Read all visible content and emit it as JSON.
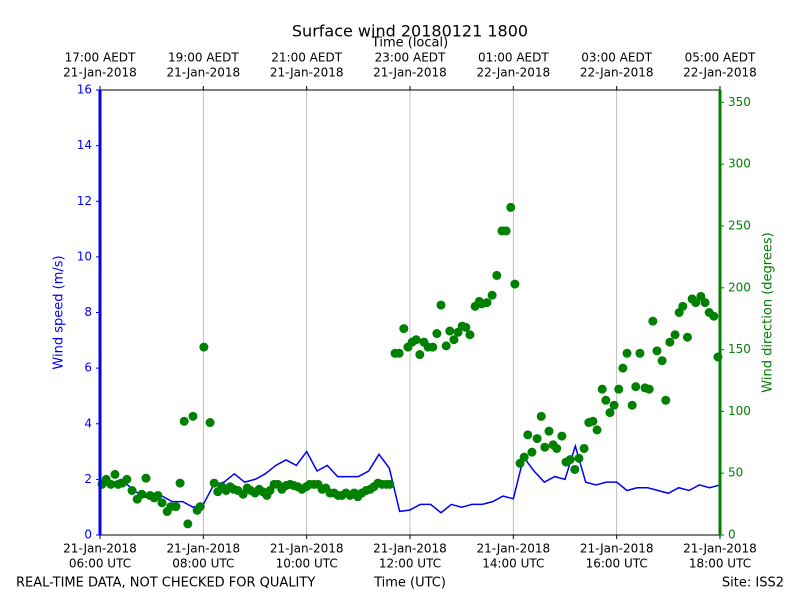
{
  "chart_data": {
    "type": "line",
    "title": "Surface wind 20180121 1800",
    "xlabel": "Time (UTC)",
    "top_xlabel": "Time (local)",
    "ylabel": "Wind speed (m/s)",
    "y2label": "Wind direction (degrees)",
    "footer_left": "REAL-TIME DATA, NOT CHECKED FOR QUALITY",
    "footer_right": "Site: ISS2",
    "xlim": [
      6,
      18
    ],
    "xticks": [
      {
        "value": 6,
        "label": [
          "21-Jan-2018",
          "06:00 UTC"
        ]
      },
      {
        "value": 8,
        "label": [
          "21-Jan-2018",
          "08:00 UTC"
        ]
      },
      {
        "value": 10,
        "label": [
          "21-Jan-2018",
          "10:00 UTC"
        ]
      },
      {
        "value": 12,
        "label": [
          "21-Jan-2018",
          "12:00 UTC"
        ]
      },
      {
        "value": 14,
        "label": [
          "21-Jan-2018",
          "14:00 UTC"
        ]
      },
      {
        "value": 16,
        "label": [
          "21-Jan-2018",
          "16:00 UTC"
        ]
      },
      {
        "value": 18,
        "label": [
          "21-Jan-2018",
          "18:00 UTC"
        ]
      }
    ],
    "top_xticks": [
      {
        "value": 6,
        "label": [
          "17:00 AEDT",
          "21-Jan-2018"
        ]
      },
      {
        "value": 8,
        "label": [
          "19:00 AEDT",
          "21-Jan-2018"
        ]
      },
      {
        "value": 10,
        "label": [
          "21:00 AEDT",
          "21-Jan-2018"
        ]
      },
      {
        "value": 12,
        "label": [
          "23:00 AEDT",
          "21-Jan-2018"
        ]
      },
      {
        "value": 14,
        "label": [
          "01:00 AEDT",
          "22-Jan-2018"
        ]
      },
      {
        "value": 16,
        "label": [
          "03:00 AEDT",
          "22-Jan-2018"
        ]
      },
      {
        "value": 18,
        "label": [
          "05:00 AEDT",
          "22-Jan-2018"
        ]
      }
    ],
    "ylim": [
      0,
      16
    ],
    "yticks": [
      0,
      2,
      4,
      6,
      8,
      10,
      12,
      14,
      16
    ],
    "y2lim": [
      0,
      360
    ],
    "y2ticks": [
      0,
      50,
      100,
      150,
      200,
      250,
      300,
      350
    ],
    "ycolor": "#0000ff",
    "y2color": "#008000",
    "grid": "x",
    "series": [
      {
        "style": "line",
        "color": "#0000ff",
        "x": [
          6.0,
          6.2,
          6.4,
          6.6,
          6.8,
          7.0,
          7.2,
          7.4,
          7.6,
          7.8,
          8.0,
          8.2,
          8.4,
          8.6,
          8.8,
          9.0,
          9.2,
          9.4,
          9.6,
          9.8,
          10.0,
          10.2,
          10.4,
          10.6,
          10.8,
          11.0,
          11.2,
          11.4,
          11.6,
          11.8,
          12.0,
          12.2,
          12.4,
          12.6,
          12.8,
          13.0,
          13.2,
          13.4,
          13.6,
          13.8,
          14.0,
          14.2,
          14.4,
          14.6,
          14.8,
          15.0,
          15.2,
          15.4,
          15.6,
          15.8,
          16.0,
          16.2,
          16.4,
          16.6,
          16.8,
          17.0,
          17.2,
          17.4,
          17.6,
          17.8,
          18.0
        ],
        "values": [
          1.8,
          1.8,
          2.0,
          1.7,
          1.4,
          1.3,
          1.4,
          1.2,
          1.2,
          1.0,
          1.1,
          1.8,
          1.9,
          2.2,
          1.9,
          2.0,
          2.2,
          2.5,
          2.7,
          2.5,
          3.0,
          2.3,
          2.5,
          2.1,
          2.1,
          2.1,
          2.3,
          2.9,
          2.4,
          0.85,
          0.9,
          1.1,
          1.1,
          0.8,
          1.1,
          1.0,
          1.1,
          1.1,
          1.2,
          1.4,
          1.3,
          2.8,
          2.3,
          1.9,
          2.1,
          2.0,
          3.2,
          1.9,
          1.8,
          1.9,
          1.9,
          1.6,
          1.7,
          1.7,
          1.6,
          1.5,
          1.7,
          1.6,
          1.8,
          1.7,
          1.8
        ]
      },
      {
        "style": "marker",
        "color": "#008000",
        "axis": "y2",
        "x": [
          6.04,
          6.12,
          6.21,
          6.29,
          6.35,
          6.43,
          6.52,
          6.62,
          6.72,
          6.81,
          6.89,
          6.97,
          7.05,
          7.12,
          7.2,
          7.3,
          7.37,
          7.47,
          7.55,
          7.63,
          7.7,
          7.8,
          7.88,
          7.94,
          8.01,
          8.13,
          8.21,
          8.28,
          8.36,
          8.44,
          8.52,
          8.59,
          8.67,
          8.77,
          8.85,
          8.92,
          9.0,
          9.08,
          9.15,
          9.23,
          9.29,
          9.37,
          9.44,
          9.52,
          9.6,
          9.68,
          9.75,
          9.83,
          9.91,
          9.99,
          10.06,
          10.14,
          10.22,
          10.3,
          10.37,
          10.45,
          10.53,
          10.61,
          10.68,
          10.76,
          10.84,
          10.92,
          10.99,
          11.07,
          11.15,
          11.23,
          11.3,
          11.38,
          11.46,
          11.54,
          11.61,
          11.71,
          11.79,
          11.88,
          11.96,
          12.04,
          12.12,
          12.19,
          12.27,
          12.35,
          12.44,
          12.52,
          12.6,
          12.7,
          12.77,
          12.85,
          12.93,
          13.01,
          13.08,
          13.16,
          13.26,
          13.34,
          13.39,
          13.49,
          13.59,
          13.68,
          13.78,
          13.86,
          13.95,
          14.03,
          14.13,
          14.21,
          14.28,
          14.36,
          14.46,
          14.54,
          14.61,
          14.69,
          14.77,
          14.84,
          14.94,
          15.02,
          15.1,
          15.19,
          15.27,
          15.37,
          15.46,
          15.54,
          15.62,
          15.72,
          15.79,
          15.87,
          15.95,
          16.04,
          16.12,
          16.2,
          16.3,
          16.37,
          16.45,
          16.55,
          16.63,
          16.7,
          16.78,
          16.88,
          16.95,
          17.03,
          17.13,
          17.21,
          17.28,
          17.37,
          17.46,
          17.53,
          17.63,
          17.71,
          17.79,
          17.88,
          17.96
        ],
        "values": [
          41,
          45,
          41,
          49,
          41,
          42,
          45,
          36,
          29,
          33,
          46,
          32,
          30,
          32,
          26,
          19,
          23,
          23,
          42,
          92,
          9,
          96,
          20,
          23,
          152,
          91,
          42,
          35,
          39,
          36,
          39,
          37,
          36,
          33,
          38,
          36,
          34,
          37,
          35,
          32,
          36,
          41,
          41,
          37,
          40,
          41,
          40,
          39,
          37,
          39,
          41,
          41,
          41,
          37,
          38,
          34,
          34,
          32,
          32,
          34,
          32,
          34,
          31,
          34,
          36,
          37,
          39,
          42,
          41,
          41,
          41,
          147,
          147,
          167,
          152,
          156,
          158,
          146,
          156,
          152,
          152,
          163,
          186,
          153,
          165,
          158,
          164,
          169,
          168,
          162,
          185,
          189,
          187,
          188,
          194,
          210,
          246,
          246,
          265,
          203,
          58,
          63,
          81,
          67,
          78,
          96,
          71,
          84,
          73,
          70,
          80,
          59,
          61,
          53,
          62,
          70,
          91,
          92,
          85,
          118,
          109,
          99,
          105,
          118,
          135,
          147,
          105,
          120,
          147,
          119,
          118,
          173,
          149,
          141,
          109,
          156,
          162,
          180,
          185,
          160,
          191,
          188,
          193,
          188,
          180,
          177,
          144
        ]
      }
    ]
  }
}
